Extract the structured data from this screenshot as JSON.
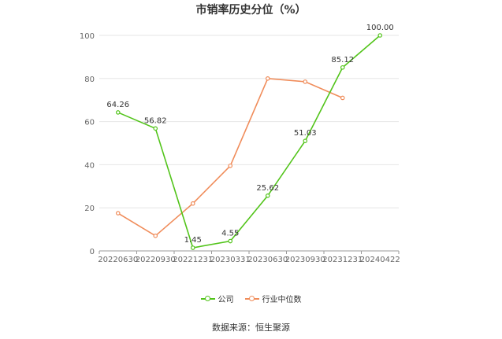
{
  "chart_data": {
    "type": "line",
    "title": "市销率历史分位（%）",
    "categories": [
      "20220630",
      "20220930",
      "20221231",
      "20230331",
      "20230630",
      "20230930",
      "20231231",
      "20240422"
    ],
    "ylim": [
      0,
      100
    ],
    "yticks": [
      0,
      20,
      40,
      60,
      80,
      100
    ],
    "grid": true,
    "legend_position": "bottom",
    "series": [
      {
        "name": "公司",
        "color": "#52c41a",
        "values": [
          64.26,
          56.82,
          1.45,
          4.55,
          25.62,
          51.03,
          85.12,
          100.0
        ],
        "labels": [
          "64.26",
          "56.82",
          "1.45",
          "4.55",
          "25.62",
          "51.03",
          "85.12",
          "100.00"
        ]
      },
      {
        "name": "行业中位数",
        "color": "#f08c5a",
        "values": [
          17.5,
          7.0,
          22.0,
          39.5,
          80.0,
          78.5,
          71.0,
          null
        ]
      }
    ],
    "source": "数据来源：恒生聚源"
  }
}
